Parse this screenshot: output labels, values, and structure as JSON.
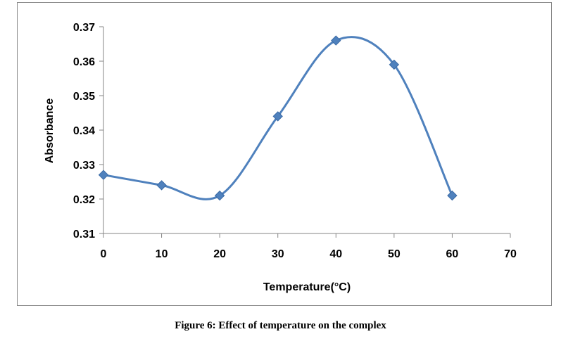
{
  "chart_data": {
    "type": "line",
    "x": [
      0,
      10,
      20,
      30,
      40,
      50,
      60
    ],
    "series": [
      {
        "values": [
          0.327,
          0.324,
          0.321,
          0.344,
          0.366,
          0.359,
          0.321
        ],
        "color": "#4f81bd",
        "marker": "diamond",
        "smooth": true
      }
    ],
    "xlabel": "Temperature(°C)",
    "ylabel": "Absorbance",
    "xlim": [
      0,
      70
    ],
    "ylim": [
      0.31,
      0.37
    ],
    "xticks": [
      "0",
      "10",
      "20",
      "30",
      "40",
      "50",
      "60",
      "70"
    ],
    "yticks": [
      "0.31",
      "0.32",
      "0.33",
      "0.34",
      "0.35",
      "0.36",
      "0.37"
    ],
    "grid": false
  },
  "caption": "Figure 6: Effect of temperature on the complex"
}
